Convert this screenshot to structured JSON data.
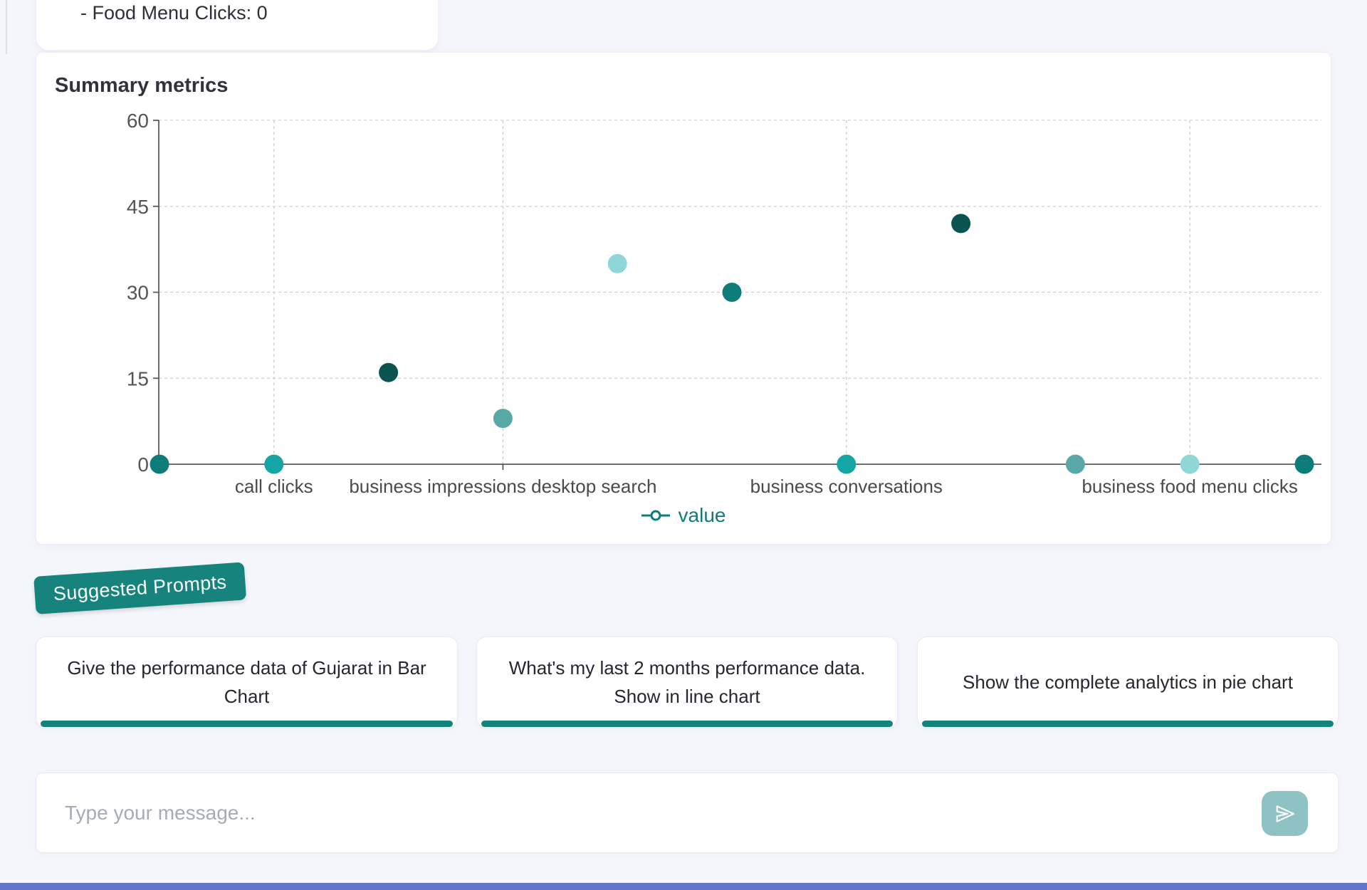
{
  "page": {
    "background": "#f5f6fb",
    "accent_teal": "#16847C"
  },
  "chat": {
    "last_message": "- Food Menu Clicks: 0"
  },
  "chart_card": {
    "title": "Summary metrics"
  },
  "chart_data": {
    "type": "scatter",
    "title": "Summary metrics",
    "series_name": "value",
    "ylim": [
      0,
      60
    ],
    "yticks": [
      0,
      15,
      30,
      45,
      60
    ],
    "grid": "dashed",
    "axis_color": "#5a5a5a",
    "points": [
      {
        "index": 0,
        "label": "",
        "value": 0,
        "color": "#0F7C7C"
      },
      {
        "index": 1,
        "label": "call clicks",
        "value": 0,
        "color": "#15A5A5"
      },
      {
        "index": 2,
        "label": "",
        "value": 16,
        "color": "#0B5351"
      },
      {
        "index": 3,
        "label": "business impressions desktop search",
        "value": 8,
        "color": "#58A8A8"
      },
      {
        "index": 4,
        "label": "",
        "value": 35,
        "color": "#8FD6D6"
      },
      {
        "index": 5,
        "label": "",
        "value": 30,
        "color": "#0F7C7C"
      },
      {
        "index": 6,
        "label": "business conversations",
        "value": 0,
        "color": "#15A5A5"
      },
      {
        "index": 7,
        "label": "",
        "value": 42,
        "color": "#0B5351"
      },
      {
        "index": 8,
        "label": "",
        "value": 0,
        "color": "#58A8A8"
      },
      {
        "index": 9,
        "label": "business food menu clicks",
        "value": 0,
        "color": "#8FD6D6"
      },
      {
        "index": 10,
        "label": "",
        "value": 0,
        "color": "#0F7C7C"
      }
    ],
    "legend": {
      "label": "value",
      "color": "#0E7D7D",
      "position": "bottom"
    }
  },
  "suggested_prompts": {
    "badge_label": "Suggested Prompts",
    "badge_color": "#16847C",
    "prompts": [
      "Give the performance data of Gujarat in Bar Chart",
      "What's my last 2 months performance data. Show in line chart",
      "Show the complete analytics in pie chart"
    ]
  },
  "composer": {
    "placeholder": "Type your message...",
    "send_icon": "paper-plane-icon",
    "send_button_color": "#8FC3C3"
  },
  "bottom_bar_color": "#6274C9"
}
